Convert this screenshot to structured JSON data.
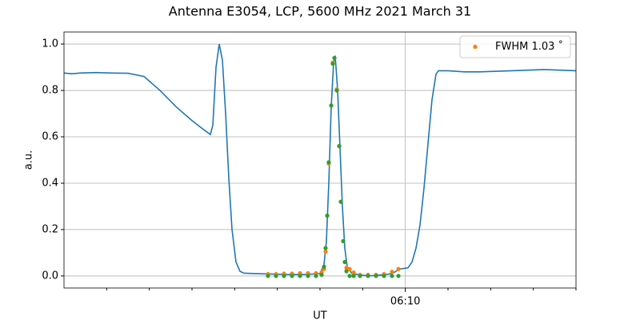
{
  "chart_data": {
    "type": "line",
    "title": "Antenna E3054, LCP, 5600 MHz 2021 March 31",
    "x_label": "UT",
    "y_label": "a.u.",
    "xlim": [
      362,
      374
    ],
    "xticks": [
      {
        "value": 370,
        "label": "06:10"
      }
    ],
    "xminorticks": [
      363,
      364,
      365,
      366,
      367,
      368,
      369,
      371,
      372,
      373,
      374
    ],
    "ylim": [
      -0.052,
      1.052
    ],
    "yticks": [
      {
        "value": 0,
        "label": "0.0"
      },
      0.2,
      0.4,
      0.6,
      0.8,
      {
        "value": 1,
        "label": "1.0"
      }
    ],
    "grid": true,
    "legend": "upper right",
    "series": [
      {
        "type": "line",
        "color": "#1f77b4",
        "x": [
          362.0,
          362.188,
          362.375,
          362.75,
          363.125,
          363.5,
          363.875,
          364.25,
          364.625,
          365.0,
          365.281,
          365.431,
          365.488,
          365.563,
          365.638,
          365.713,
          365.788,
          365.863,
          365.938,
          366.031,
          366.125,
          366.219,
          366.5,
          366.875,
          367.25,
          367.625,
          368.0,
          368.094,
          368.15,
          368.206,
          368.263,
          368.319,
          368.356,
          368.413,
          368.469,
          368.525,
          368.581,
          368.638,
          368.75,
          369.125,
          369.5,
          369.688,
          369.875,
          370.063,
          370.156,
          370.25,
          370.344,
          370.438,
          370.531,
          370.625,
          370.719,
          370.775,
          371.0,
          371.375,
          371.75,
          372.5,
          373.25,
          374.0
        ],
        "values": [
          0.875,
          0.872,
          0.875,
          0.877,
          0.875,
          0.874,
          0.86,
          0.8,
          0.73,
          0.67,
          0.63,
          0.61,
          0.65,
          0.9,
          1.0,
          0.93,
          0.7,
          0.42,
          0.2,
          0.06,
          0.02,
          0.012,
          0.01,
          0.008,
          0.006,
          0.006,
          0.01,
          0.05,
          0.15,
          0.4,
          0.73,
          0.92,
          0.95,
          0.8,
          0.55,
          0.3,
          0.12,
          0.04,
          0.01,
          0.0,
          0.005,
          0.01,
          0.03,
          0.035,
          0.06,
          0.12,
          0.22,
          0.38,
          0.57,
          0.76,
          0.87,
          0.885,
          0.885,
          0.88,
          0.88,
          0.885,
          0.89,
          0.885
        ]
      },
      {
        "type": "scatter",
        "name": "FWHM 1.03 ˚",
        "color": "#ff7f0e",
        "x": [
          366.781,
          366.969,
          367.156,
          367.344,
          367.531,
          367.719,
          367.906,
          368.038,
          368.094,
          368.131,
          368.169,
          368.206,
          368.263,
          368.3,
          368.338,
          368.394,
          368.45,
          368.488,
          368.544,
          368.581,
          368.619,
          368.694,
          368.788,
          368.938,
          369.125,
          369.313,
          369.5,
          369.688,
          369.838
        ],
        "values": [
          0.008,
          0.008,
          0.01,
          0.01,
          0.012,
          0.012,
          0.012,
          0.015,
          0.03,
          0.105,
          0.26,
          0.485,
          0.735,
          0.92,
          0.94,
          0.805,
          0.56,
          0.32,
          0.15,
          0.06,
          0.035,
          0.03,
          0.015,
          0.005,
          0.005,
          0.005,
          0.008,
          0.018,
          0.03
        ]
      },
      {
        "type": "scatter",
        "color": "#2ca02c",
        "x": [
          366.781,
          366.969,
          367.156,
          367.344,
          367.531,
          367.719,
          367.906,
          368.038,
          368.094,
          368.131,
          368.169,
          368.206,
          368.263,
          368.3,
          368.338,
          368.394,
          368.45,
          368.488,
          368.544,
          368.581,
          368.619,
          368.694,
          368.788,
          368.938,
          369.125,
          369.313,
          369.5,
          369.688,
          369.838
        ],
        "values": [
          0,
          0,
          0,
          0,
          0,
          0,
          0,
          0.005,
          0.04,
          0.12,
          0.26,
          0.49,
          0.735,
          0.915,
          0.94,
          0.8,
          0.56,
          0.32,
          0.15,
          0.06,
          0.02,
          0,
          0,
          0,
          0,
          0,
          0,
          0,
          0
        ]
      }
    ]
  }
}
